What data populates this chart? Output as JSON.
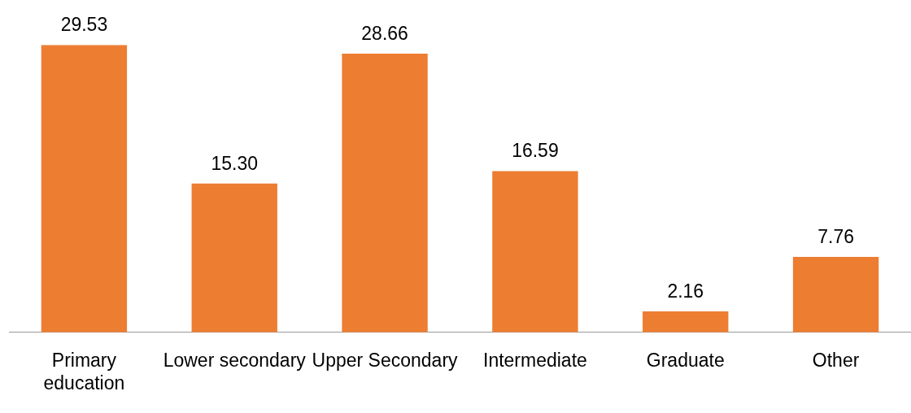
{
  "chart_data": {
    "type": "bar",
    "categories": [
      "Primary education",
      "Lower secondary",
      "Upper Secondary",
      "Intermediate",
      "Graduate",
      "Other"
    ],
    "values": [
      29.53,
      15.3,
      28.66,
      16.59,
      2.16,
      7.76
    ],
    "value_labels": [
      "29.53",
      "15.30",
      "28.66",
      "16.59",
      "2.16",
      "7.76"
    ],
    "color": "#ed7d31"
  }
}
